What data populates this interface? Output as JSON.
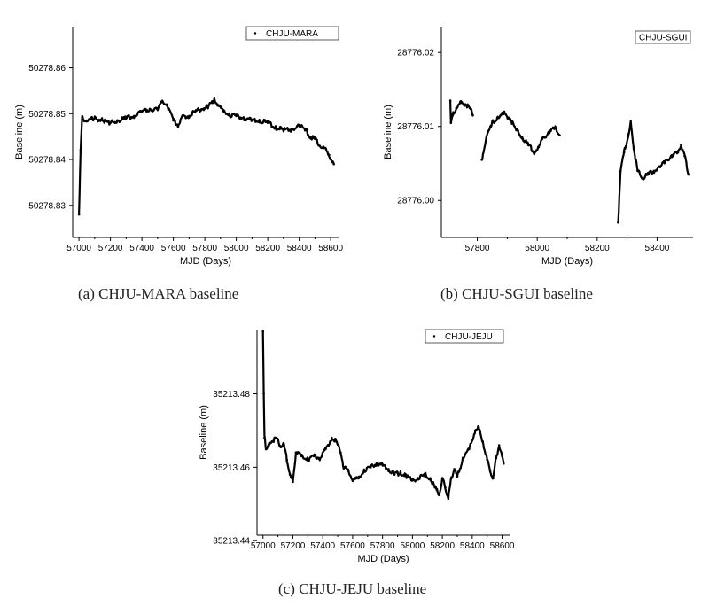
{
  "chart_data": [
    {
      "type": "scatter",
      "caption": "(a) CHJU-MARA baseline",
      "xlabel": "MJD (Days)",
      "ylabel": "Baseline (m)",
      "legend": [
        "CHJU-MARA"
      ],
      "legend_position": "top-right",
      "xlim": [
        56960,
        58650
      ],
      "ylim": [
        50278.823,
        50278.869
      ],
      "xticks": [
        57000,
        57200,
        57400,
        57600,
        57800,
        58000,
        58200,
        58400,
        58600
      ],
      "yticks": [
        50278.83,
        50278.84,
        50278.85,
        50278.86
      ],
      "ytick_labels": [
        "50278.83",
        "50278.84",
        "50278.85",
        "50278.86"
      ],
      "grid": false,
      "series": [
        {
          "name": "CHJU-MARA",
          "x": [
            57000,
            57010,
            57020,
            57050,
            57100,
            57150,
            57200,
            57250,
            57300,
            57350,
            57400,
            57450,
            57500,
            57530,
            57560,
            57600,
            57630,
            57660,
            57700,
            57740,
            57780,
            57820,
            57860,
            57880,
            57920,
            57960,
            58000,
            58050,
            58100,
            58150,
            58200,
            58250,
            58300,
            58350,
            58400,
            58440,
            58470,
            58500,
            58530,
            58560,
            58590,
            58620
          ],
          "y": [
            50278.828,
            50278.842,
            50278.849,
            50278.8485,
            50278.849,
            50278.8485,
            50278.848,
            50278.8485,
            50278.849,
            50278.8495,
            50278.8505,
            50278.851,
            50278.851,
            50278.8525,
            50278.852,
            50278.8485,
            50278.8475,
            50278.8495,
            50278.8495,
            50278.8505,
            50278.851,
            50278.8515,
            50278.853,
            50278.852,
            50278.8505,
            50278.8495,
            50278.8495,
            50278.849,
            50278.8485,
            50278.8485,
            50278.848,
            50278.847,
            50278.8465,
            50278.8465,
            50278.8475,
            50278.8465,
            50278.845,
            50278.8445,
            50278.843,
            50278.8425,
            50278.841,
            50278.839
          ]
        }
      ]
    },
    {
      "type": "scatter",
      "caption": "(b) CHJU-SGUI baseline",
      "xlabel": "MJD (Days)",
      "ylabel": "Baseline (m)",
      "legend": [
        "CHJU-SGUI"
      ],
      "legend_position": "top-right",
      "xlim": [
        57680,
        58520
      ],
      "ylim": [
        28775.995,
        28776.0235
      ],
      "xticks": [
        57800,
        58000,
        58200,
        58400
      ],
      "yticks": [
        28776.0,
        28776.01,
        28776.02
      ],
      "ytick_labels": [
        "28776.00",
        "28776.01",
        "28776.02"
      ],
      "grid": false,
      "series": [
        {
          "name": "CHJU-SGUI",
          "segments": [
            {
              "x": [
                57710,
                57712,
                57718,
                57730,
                57745,
                57760,
                57775,
                57785
              ],
              "y": [
                28776.0135,
                28776.0105,
                28776.0115,
                28776.0125,
                28776.0132,
                28776.013,
                28776.0125,
                28776.0115
              ]
            },
            {
              "x": [
                57815,
                57830,
                57850,
                57870,
                57890,
                57910,
                57930,
                57950,
                57970,
                57990,
                58005,
                58020,
                58040,
                58060,
                58075
              ],
              "y": [
                28776.0055,
                28776.0085,
                28776.0105,
                28776.0112,
                28776.0118,
                28776.011,
                28776.0095,
                28776.0085,
                28776.0075,
                28776.0065,
                28776.0072,
                28776.0085,
                28776.0092,
                28776.0098,
                28776.0088
              ]
            },
            {
              "x": [
                58270,
                58278,
                58290,
                58305,
                58312,
                58322,
                58335,
                58350,
                58370,
                58390,
                58410,
                58430,
                58450,
                58470,
                58480,
                58492,
                58505
              ],
              "y": [
                28775.997,
                28776.004,
                28776.0065,
                28776.009,
                28776.0105,
                28776.007,
                28776.004,
                28776.003,
                28776.0035,
                28776.004,
                28776.0045,
                28776.0055,
                28776.006,
                28776.0065,
                28776.0075,
                28776.006,
                28776.0035
              ]
            }
          ]
        }
      ]
    },
    {
      "type": "scatter",
      "caption": "(c) CHJU-JEJU baseline",
      "xlabel": "MJD (Days)",
      "ylabel": "Baseline (m)",
      "legend": [
        "CHJU-JEJU"
      ],
      "legend_position": "top-right",
      "xlim": [
        56960,
        58650
      ],
      "ylim": [
        35213.4415,
        35213.4975
      ],
      "xticks": [
        57000,
        57200,
        57400,
        57600,
        57800,
        58000,
        58200,
        58400,
        58600
      ],
      "yticks": [
        35213.44,
        35213.46,
        35213.48
      ],
      "ytick_labels": [
        "35213.44",
        "35213.46",
        "35213.48"
      ],
      "grid": false,
      "series": [
        {
          "name": "CHJU-JEJU",
          "x": [
            57000,
            57005,
            57010,
            57020,
            57040,
            57060,
            57090,
            57110,
            57140,
            57160,
            57180,
            57200,
            57220,
            57260,
            57300,
            57340,
            57380,
            57420,
            57460,
            57490,
            57520,
            57540,
            57570,
            57600,
            57640,
            57680,
            57720,
            57760,
            57800,
            57840,
            57880,
            57920,
            57960,
            58000,
            58040,
            58080,
            58120,
            58150,
            58180,
            58200,
            58220,
            58240,
            58260,
            58280,
            58300,
            58340,
            58380,
            58420,
            58440,
            58470,
            58500,
            58520,
            58540,
            58560,
            58580,
            58610
          ],
          "y": [
            35213.497,
            35213.48,
            35213.468,
            35213.465,
            35213.466,
            35213.467,
            35213.468,
            35213.466,
            35213.466,
            35213.462,
            35213.458,
            35213.456,
            35213.464,
            35213.463,
            35213.462,
            35213.463,
            35213.4625,
            35213.465,
            35213.468,
            35213.467,
            35213.464,
            35213.46,
            35213.459,
            35213.4565,
            35213.457,
            35213.459,
            35213.46,
            35213.461,
            35213.4605,
            35213.4595,
            35213.458,
            35213.4585,
            35213.4575,
            35213.4565,
            35213.457,
            35213.458,
            35213.457,
            35213.4545,
            35213.4525,
            35213.457,
            35213.4545,
            35213.4515,
            35213.457,
            35213.4595,
            35213.4575,
            35213.4625,
            35213.465,
            35213.47,
            35213.471,
            35213.467,
            35213.462,
            35213.459,
            35213.457,
            35213.4625,
            35213.466,
            35213.461
          ]
        }
      ]
    }
  ]
}
